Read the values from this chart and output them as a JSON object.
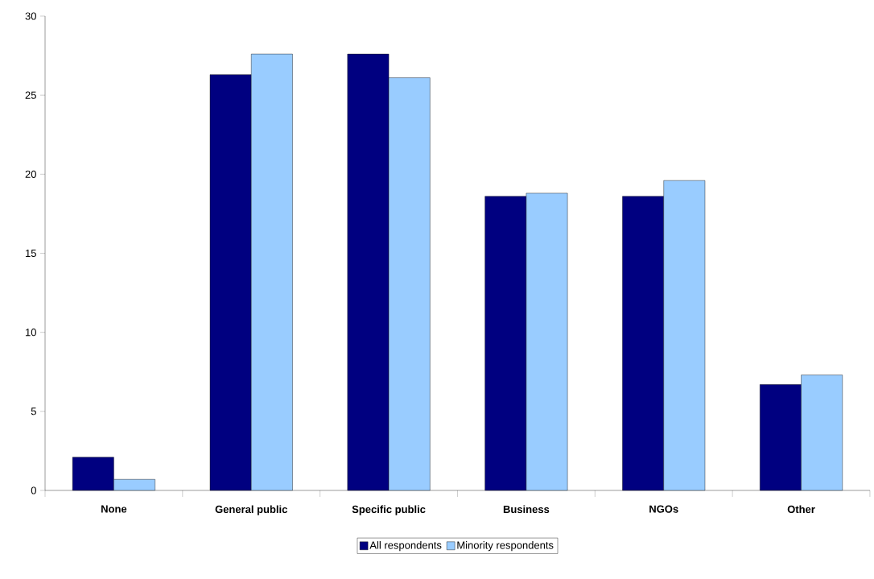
{
  "chart_data": {
    "type": "bar",
    "categories": [
      "None",
      "General public",
      "Specific public",
      "Business",
      "NGOs",
      "Other"
    ],
    "series": [
      {
        "name": "All respondents",
        "color": "#000080",
        "values": [
          2.1,
          26.3,
          27.6,
          18.6,
          18.6,
          6.7
        ]
      },
      {
        "name": "Minority respondents",
        "color": "#99ccff",
        "values": [
          0.7,
          27.6,
          26.1,
          18.8,
          19.6,
          7.3
        ]
      }
    ],
    "ylim": [
      0,
      30
    ],
    "yticks": [
      0,
      5,
      10,
      15,
      20,
      25,
      30
    ],
    "grid": false,
    "legend": "bottom"
  }
}
